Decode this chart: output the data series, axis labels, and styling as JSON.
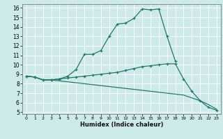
{
  "title": "",
  "xlabel": "Humidex (Indice chaleur)",
  "background_color": "#cceae7",
  "line_color": "#1e7a6e",
  "grid_color": "#ffffff",
  "xlim": [
    -0.5,
    23.5
  ],
  "ylim": [
    4.8,
    16.4
  ],
  "xticks": [
    0,
    1,
    2,
    3,
    4,
    5,
    6,
    7,
    8,
    9,
    10,
    11,
    12,
    13,
    14,
    15,
    16,
    17,
    18,
    19,
    20,
    21,
    22,
    23
  ],
  "yticks": [
    5,
    6,
    7,
    8,
    9,
    10,
    11,
    12,
    13,
    14,
    15,
    16
  ],
  "line1_x": [
    0,
    1,
    2,
    3,
    4,
    5,
    6,
    7,
    8,
    9,
    10,
    11,
    12,
    13,
    14,
    15,
    16,
    17,
    18
  ],
  "line1_y": [
    8.8,
    8.7,
    8.4,
    8.4,
    8.5,
    8.8,
    9.5,
    11.1,
    11.1,
    11.5,
    13.0,
    14.3,
    14.4,
    14.9,
    15.9,
    15.8,
    15.9,
    13.0,
    10.4
  ],
  "line2_x": [
    0,
    1,
    2,
    3,
    4,
    5,
    6,
    7,
    8,
    9,
    10,
    11,
    12,
    13,
    14,
    15,
    16,
    17,
    18,
    19,
    20,
    21,
    22,
    23
  ],
  "line2_y": [
    8.8,
    8.7,
    8.4,
    8.4,
    8.5,
    8.6,
    8.7,
    8.8,
    8.9,
    9.0,
    9.1,
    9.2,
    9.4,
    9.6,
    9.8,
    9.9,
    10.0,
    10.1,
    10.1,
    8.5,
    7.2,
    6.2,
    5.5,
    5.2
  ],
  "line3_x": [
    0,
    1,
    2,
    3,
    4,
    5,
    6,
    7,
    8,
    9,
    10,
    11,
    12,
    13,
    14,
    15,
    16,
    17,
    18,
    19,
    20,
    21,
    22,
    23
  ],
  "line3_y": [
    8.8,
    8.7,
    8.4,
    8.4,
    8.3,
    8.2,
    8.1,
    8.0,
    7.9,
    7.8,
    7.7,
    7.6,
    7.5,
    7.4,
    7.3,
    7.2,
    7.1,
    7.0,
    6.9,
    6.8,
    6.5,
    6.2,
    5.8,
    5.3
  ]
}
